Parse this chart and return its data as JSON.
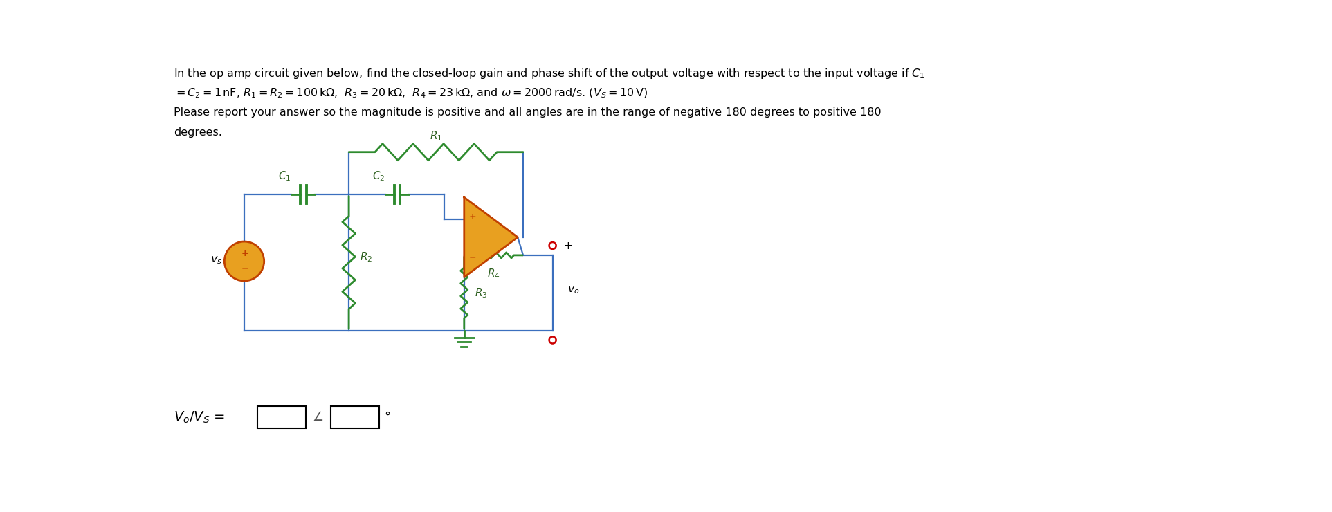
{
  "wire_color": "#3B6FBE",
  "resistor_color": "#2E8B2E",
  "opamp_fill": "#E8A020",
  "opamp_edge": "#C04000",
  "source_fill": "#E8A020",
  "source_edge": "#C04000",
  "terminal_color": "#CC0000",
  "label_color": "#000000",
  "comp_label_color": "#2E6020",
  "background": "#ffffff",
  "lw_wire": 1.6,
  "lw_comp": 2.0
}
